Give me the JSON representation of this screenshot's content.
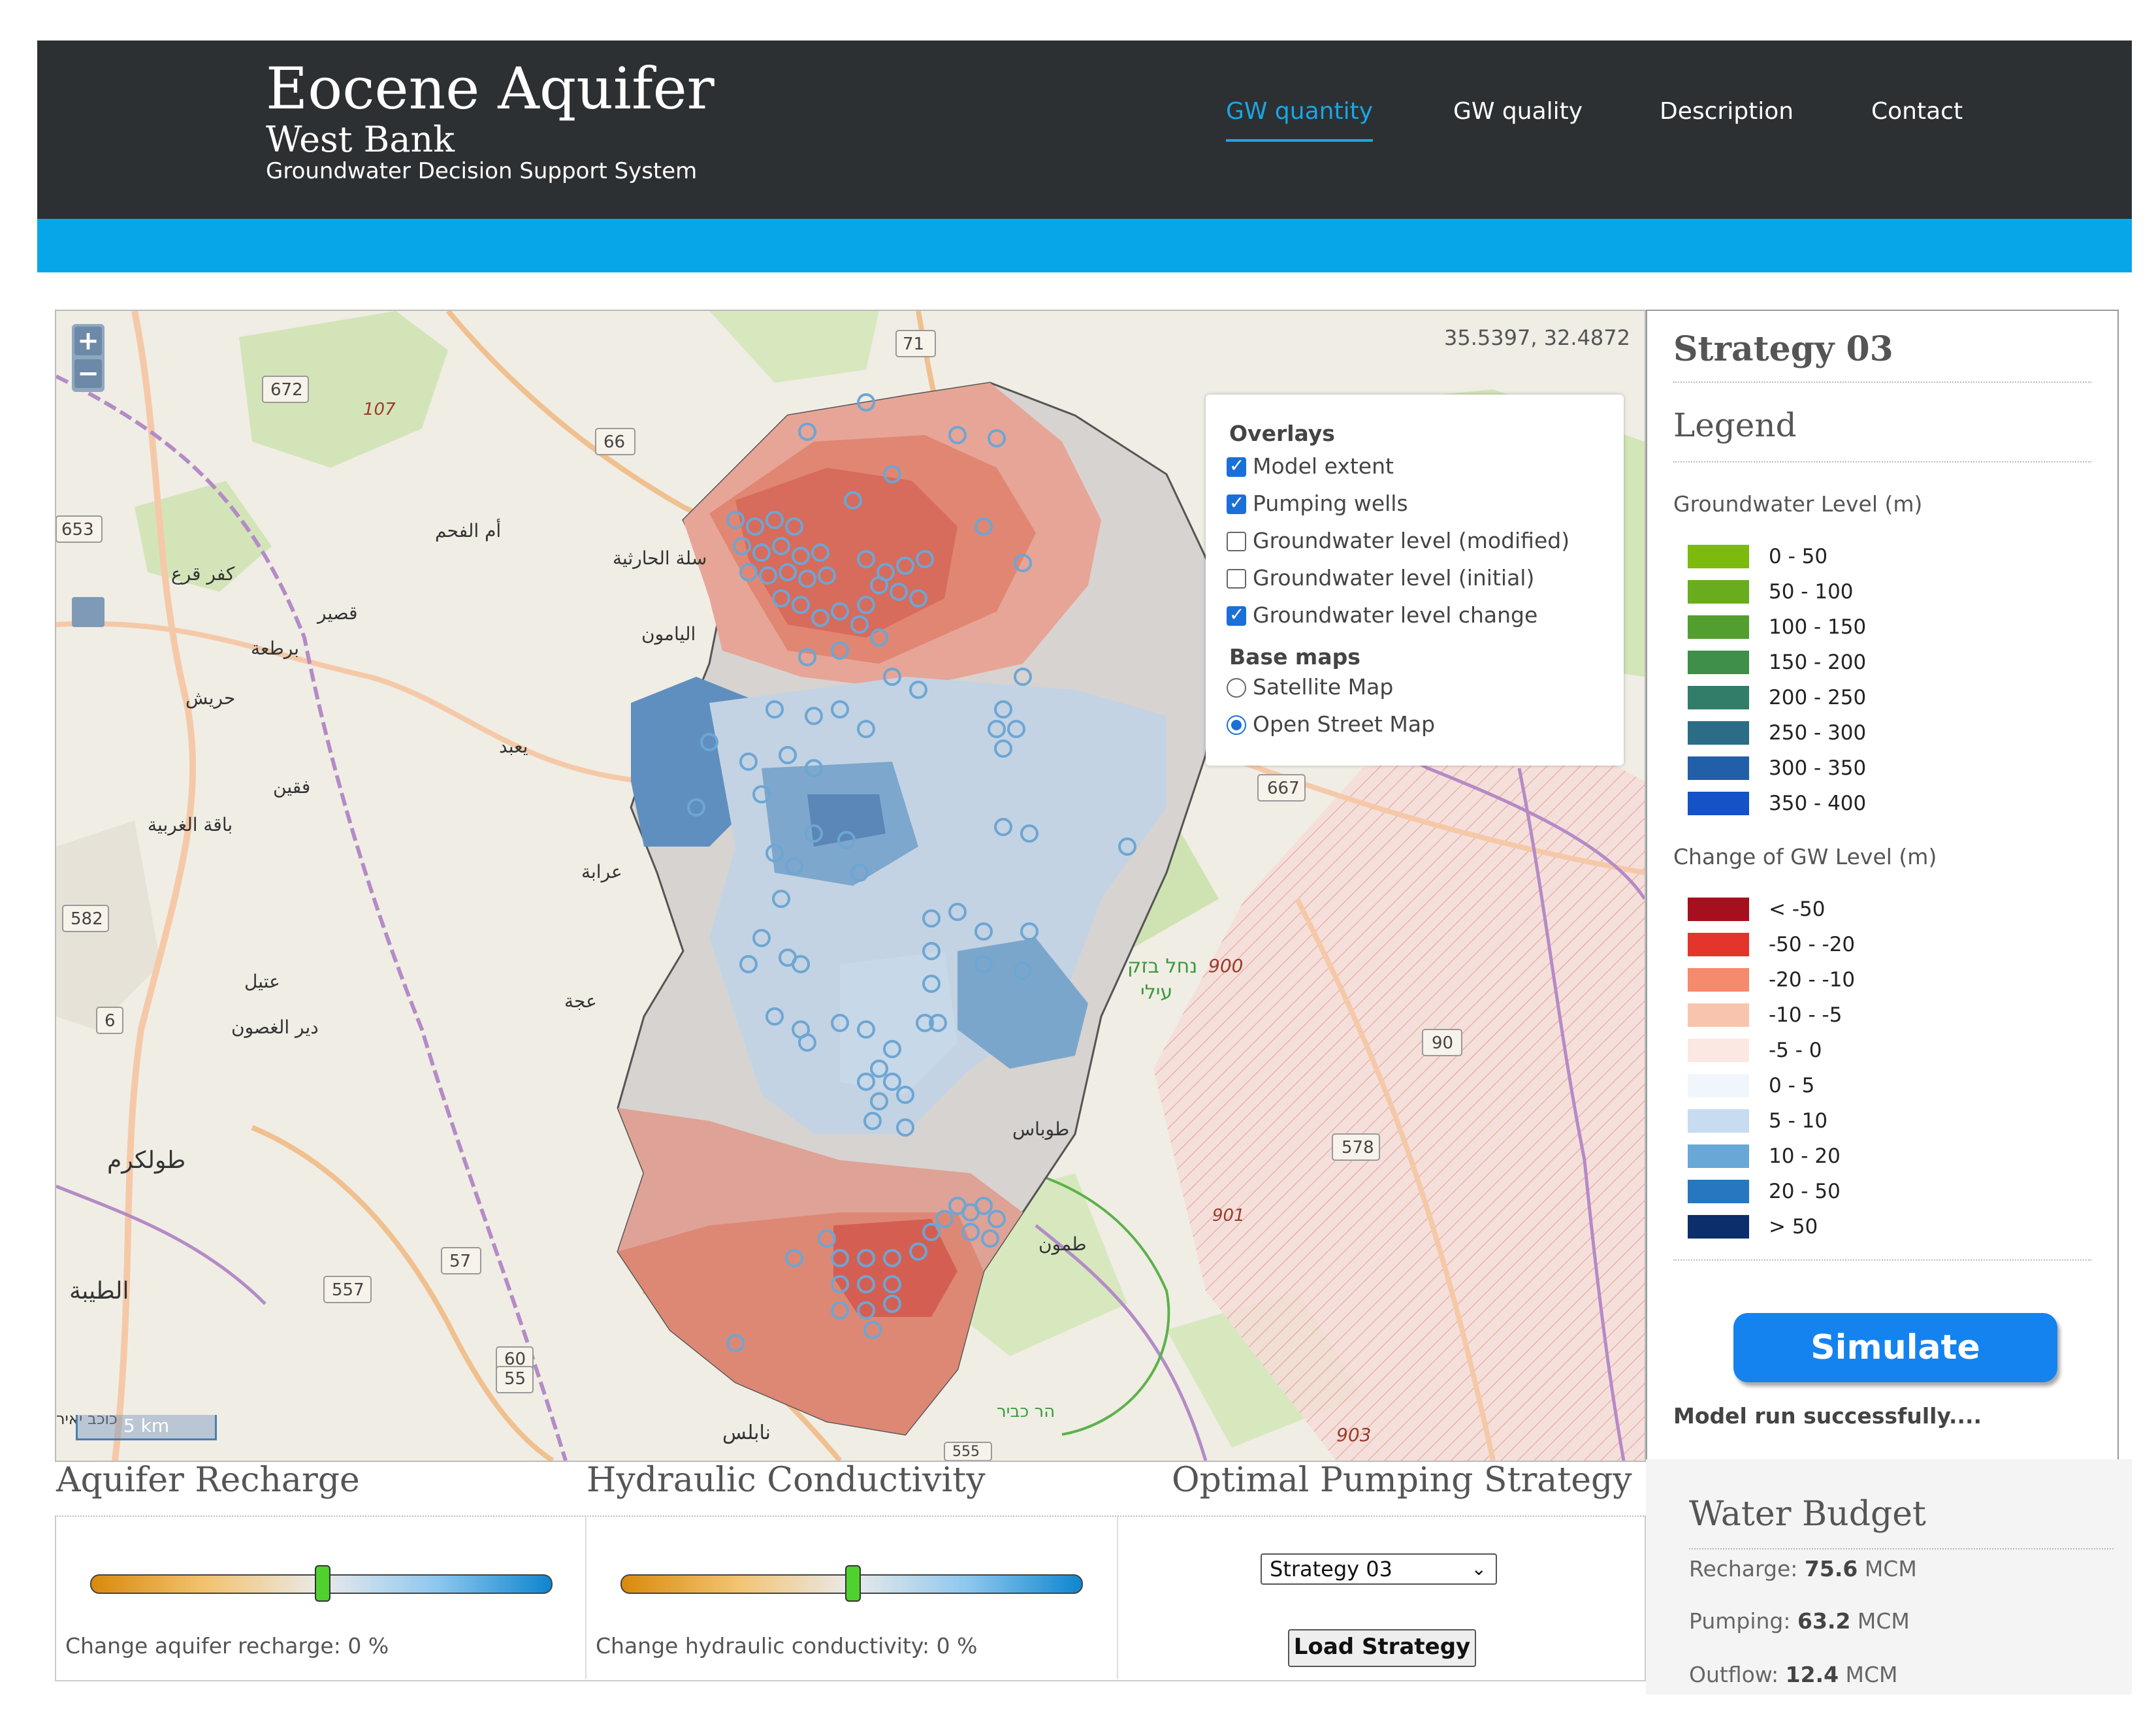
{
  "header": {
    "title": "Eocene Aquifer",
    "subtitle": "West Bank",
    "tagline": "Groundwater Decision Support System",
    "nav": [
      {
        "label": "GW quantity",
        "active": true
      },
      {
        "label": "GW quality",
        "active": false
      },
      {
        "label": "Description",
        "active": false
      },
      {
        "label": "Contact",
        "active": false
      }
    ],
    "accent_color": "#05a7e8"
  },
  "map": {
    "coords": "35.5397, 32.4872",
    "zoom_in": "+",
    "zoom_out": "−",
    "scale_label": "5 km",
    "road_labels": [
      "71",
      "672",
      "107",
      "66",
      "653",
      "667",
      "582",
      "6",
      "90",
      "578",
      "57",
      "557",
      "60",
      "55",
      "555",
      "900",
      "901",
      "903"
    ],
    "place_labels": [
      "أم الفحم",
      "كفر قرع",
      "قصير",
      "برطعة",
      "حريش",
      "اليامون",
      "سلة الحارثية",
      "يعبد",
      "فقين",
      "باقة الغربية",
      "عرابة",
      "عتيل",
      "دير الغصون",
      "طولكرم",
      "عجة",
      "الطيبة",
      "طوباس",
      "طمون",
      "نابلس",
      "נחל בזק",
      "עילי",
      "הר כביר",
      "כוכב יאיר"
    ],
    "overlays": {
      "heading": "Overlays",
      "items": [
        {
          "label": "Model extent",
          "checked": true
        },
        {
          "label": "Pumping wells",
          "checked": true
        },
        {
          "label": "Groundwater level (modified)",
          "checked": false
        },
        {
          "label": "Groundwater level (initial)",
          "checked": false
        },
        {
          "label": "Groundwater level change",
          "checked": true
        }
      ]
    },
    "basemaps": {
      "heading": "Base maps",
      "items": [
        {
          "label": "Satellite Map",
          "selected": false
        },
        {
          "label": "Open Street Map",
          "selected": true
        }
      ]
    }
  },
  "sidebar": {
    "strategy_title": "Strategy 03",
    "legend_title": "Legend",
    "gw_level_title": "Groundwater Level (m)",
    "gw_level": [
      {
        "label": "0 - 50",
        "color": "#7cba0e"
      },
      {
        "label": "50 - 100",
        "color": "#67ad1e"
      },
      {
        "label": "100 - 150",
        "color": "#529f2f"
      },
      {
        "label": "150 - 200",
        "color": "#3f8e4a"
      },
      {
        "label": "200 - 250",
        "color": "#327d69"
      },
      {
        "label": "250 - 300",
        "color": "#2b6d86"
      },
      {
        "label": "300 - 350",
        "color": "#2160a8"
      },
      {
        "label": "350 - 400",
        "color": "#1452c7"
      }
    ],
    "change_title": "Change of GW Level (m)",
    "change": [
      {
        "label": "< -50",
        "color": "#a6101e"
      },
      {
        "label": "-50 - -20",
        "color": "#e4352c"
      },
      {
        "label": "-20 - -10",
        "color": "#f58a6c"
      },
      {
        "label": "-10 - -5",
        "color": "#f9c4ad"
      },
      {
        "label": "-5 - 0",
        "color": "#fbe8e2"
      },
      {
        "label": "0 - 5",
        "color": "#f1f6fc"
      },
      {
        "label": "5 - 10",
        "color": "#c7dcf0"
      },
      {
        "label": "10 - 20",
        "color": "#69a8d6"
      },
      {
        "label": "20 - 50",
        "color": "#2777be"
      },
      {
        "label": "> 50",
        "color": "#0c2f6b"
      }
    ],
    "simulate_label": "Simulate",
    "status": "Model run successfully...."
  },
  "controls": {
    "recharge": {
      "title": "Aquifer Recharge",
      "caption": "Change aquifer recharge: 0 %",
      "value_percent": 0
    },
    "conductivity": {
      "title": "Hydraulic Conductivity",
      "caption": "Change hydraulic conductivity: 0 %",
      "value_percent": 0
    },
    "strategy": {
      "title": "Optimal Pumping Strategy",
      "selected": "Strategy 03",
      "load_label": "Load Strategy"
    }
  },
  "water_budget": {
    "title": "Water Budget",
    "rows": [
      {
        "label": "Recharge:",
        "value": "75.6",
        "unit": "MCM"
      },
      {
        "label": "Pumping:",
        "value": "63.2",
        "unit": "MCM"
      },
      {
        "label": "Outflow:",
        "value": "12.4",
        "unit": "MCM"
      }
    ]
  }
}
